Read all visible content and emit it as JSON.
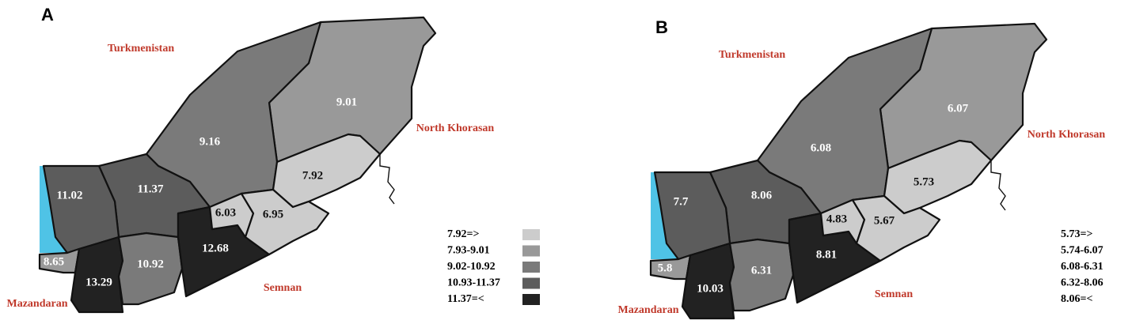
{
  "panels": [
    {
      "label": "A",
      "neighbors": [
        "Turkmenistan",
        "North Khorasan",
        "Semnan",
        "Mazandaran"
      ],
      "sea_color": "#4fc3e6",
      "regions": [
        {
          "value": "9.01",
          "color": "#999999"
        },
        {
          "value": "9.16",
          "color": "#7a7a7a"
        },
        {
          "value": "7.92",
          "color": "#cccccc"
        },
        {
          "value": "11.37",
          "color": "#5c5c5c"
        },
        {
          "value": "11.02",
          "color": "#5c5c5c"
        },
        {
          "value": "8.65",
          "color": "#999999"
        },
        {
          "value": "13.29",
          "color": "#222222"
        },
        {
          "value": "10.92",
          "color": "#7a7a7a"
        },
        {
          "value": "12.68",
          "color": "#222222"
        },
        {
          "value": "6.03",
          "color": "#cccccc"
        },
        {
          "value": "6.95",
          "color": "#cccccc"
        }
      ],
      "legend": [
        {
          "label": "7.92=>",
          "color": "#cccccc"
        },
        {
          "label": "7.93-9.01",
          "color": "#999999"
        },
        {
          "label": "9.02-10.92",
          "color": "#7a7a7a"
        },
        {
          "label": "10.93-11.37",
          "color": "#5c5c5c"
        },
        {
          "label": "11.37=<",
          "color": "#222222"
        }
      ]
    },
    {
      "label": "B",
      "neighbors": [
        "Turkmenistan",
        "North Khorasan",
        "Semnan",
        "Mazandaran"
      ],
      "sea_color": "#4fc3e6",
      "regions": [
        {
          "value": "6.07",
          "color": "#999999"
        },
        {
          "value": "6.08",
          "color": "#7a7a7a"
        },
        {
          "value": "5.73",
          "color": "#cccccc"
        },
        {
          "value": "8.06",
          "color": "#5c5c5c"
        },
        {
          "value": "7.7",
          "color": "#5c5c5c"
        },
        {
          "value": "5.8",
          "color": "#999999"
        },
        {
          "value": "10.03",
          "color": "#222222"
        },
        {
          "value": "6.31",
          "color": "#7a7a7a"
        },
        {
          "value": "8.81",
          "color": "#222222"
        },
        {
          "value": "4.83",
          "color": "#cccccc"
        },
        {
          "value": "5.67",
          "color": "#cccccc"
        }
      ],
      "legend": [
        {
          "label": "5.73=>",
          "color": "#cccccc"
        },
        {
          "label": "5.74-6.07",
          "color": "#999999"
        },
        {
          "label": "6.08-6.31",
          "color": "#7a7a7a"
        },
        {
          "label": "6.32-8.06",
          "color": "#5c5c5c"
        },
        {
          "label": "8.06=<",
          "color": "#222222"
        }
      ]
    }
  ]
}
